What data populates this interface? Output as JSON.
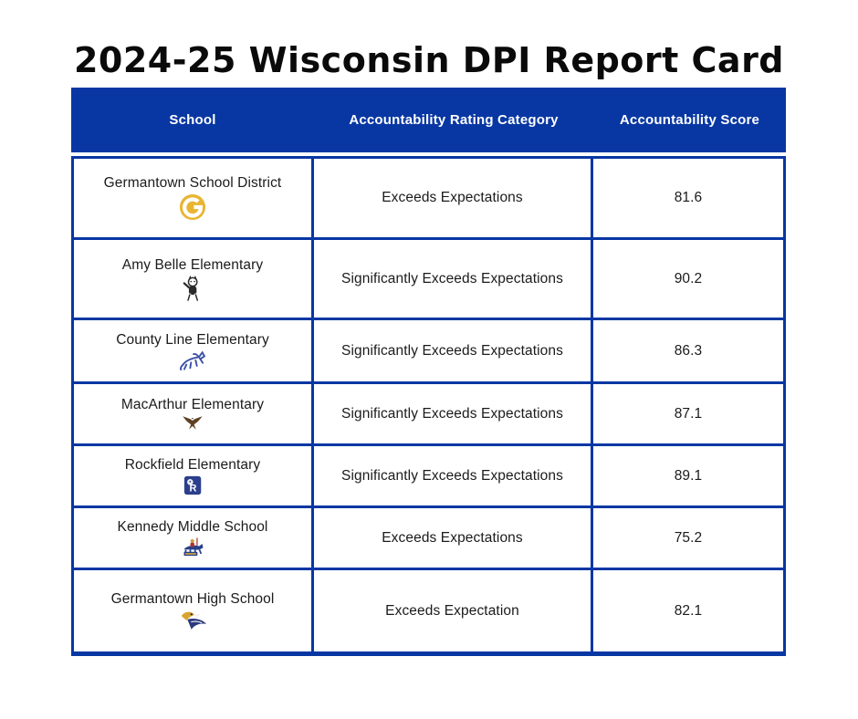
{
  "page": {
    "title": "2024-25 Wisconsin DPI Report Card"
  },
  "colors": {
    "table_blue": "#0837A3",
    "header_text": "#FFFFFF",
    "cell_text": "#1B1B1B",
    "title_text": "#0A0A0A",
    "gold_badge": "#E9B531"
  },
  "chart_data": {
    "type": "table",
    "title": "2024-25 Wisconsin DPI Report Card",
    "columns": [
      "School",
      "Accountability Rating Category",
      "Accountability Score"
    ],
    "rows": [
      {
        "school": "Germantown School District",
        "icon": "gold-g-badge-icon",
        "rating": "Exceeds Expectations",
        "score": "81.6"
      },
      {
        "school": "Amy Belle Elementary",
        "icon": "wildcat-mascot-icon",
        "rating": "Significantly Exceeds Expectations",
        "score": "90.2"
      },
      {
        "school": "County Line Elementary",
        "icon": "colt-mascot-icon",
        "rating": "Significantly Exceeds Expectations",
        "score": "86.3"
      },
      {
        "school": "MacArthur Elementary",
        "icon": "eagle-mascot-icon",
        "rating": "Significantly Exceeds Expectations",
        "score": "87.1"
      },
      {
        "school": "Rockfield Elementary",
        "icon": "rockfield-emblem-icon",
        "rating": "Significantly Exceeds Expectations",
        "score": "89.1"
      },
      {
        "school": "Kennedy Middle School",
        "icon": "crusader-mascot-icon",
        "rating": "Exceeds Expectations",
        "score": "75.2"
      },
      {
        "school": "Germantown High School",
        "icon": "warhawk-mascot-icon",
        "rating": "Exceeds Expectation",
        "score": "82.1"
      }
    ]
  }
}
